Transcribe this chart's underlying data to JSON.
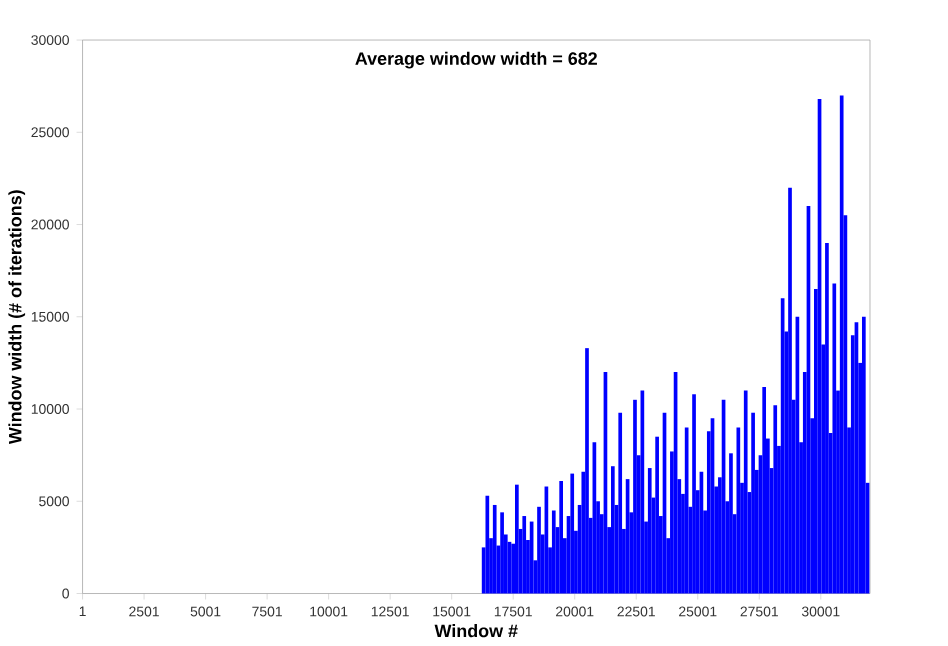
{
  "chart_data": {
    "type": "bar",
    "title": "Average window width = 682",
    "xlabel": "Window #",
    "ylabel": "Window width (# of iterations)",
    "x": [
      16300,
      16450,
      16600,
      16750,
      16900,
      17050,
      17200,
      17350,
      17500,
      17650,
      17800,
      17950,
      18100,
      18250,
      18400,
      18550,
      18700,
      18850,
      19000,
      19150,
      19300,
      19450,
      19600,
      19750,
      19900,
      20050,
      20200,
      20350,
      20500,
      20650,
      20800,
      20950,
      21100,
      21250,
      21400,
      21550,
      21700,
      21850,
      22000,
      22150,
      22300,
      22450,
      22600,
      22750,
      22900,
      23050,
      23200,
      23350,
      23500,
      23650,
      23800,
      23950,
      24100,
      24250,
      24400,
      24550,
      24700,
      24850,
      25000,
      25150,
      25300,
      25450,
      25600,
      25750,
      25900,
      26050,
      26200,
      26350,
      26500,
      26650,
      26800,
      26950,
      27100,
      27250,
      27400,
      27550,
      27700,
      27850,
      28000,
      28150,
      28300,
      28450,
      28600,
      28750,
      28900,
      29050,
      29200,
      29350,
      29500,
      29650,
      29800,
      29950,
      30100,
      30250,
      30400,
      30550,
      30700,
      30850,
      31000,
      31150,
      31300,
      31450,
      31600,
      31750,
      31900
    ],
    "values": [
      2500,
      5300,
      3000,
      4800,
      2600,
      4400,
      3200,
      2800,
      2700,
      5900,
      3500,
      4200,
      2900,
      3900,
      1800,
      4700,
      3200,
      5800,
      2500,
      4500,
      3600,
      6100,
      3000,
      4200,
      6500,
      3400,
      4800,
      6600,
      13300,
      4100,
      8200,
      5000,
      4300,
      12000,
      3600,
      6900,
      4800,
      9800,
      3500,
      6200,
      4400,
      10500,
      7500,
      11000,
      3900,
      6800,
      5200,
      8500,
      4200,
      9800,
      3000,
      7700,
      12000,
      6200,
      5400,
      9000,
      4700,
      10800,
      5600,
      6600,
      4500,
      8800,
      9500,
      5800,
      6300,
      10500,
      5000,
      7600,
      4300,
      9000,
      6000,
      11000,
      5500,
      9800,
      6700,
      7500,
      11200,
      8400,
      6800,
      10200,
      8000,
      16000,
      14200,
      22000,
      10500,
      15000,
      8200,
      12000,
      21000,
      9500,
      16500,
      26800,
      13500,
      19000,
      8700,
      16800,
      11000,
      27000,
      20500,
      9000,
      14000,
      14700,
      12500,
      15000,
      6000
    ],
    "color": "#0000ff",
    "xlim": [
      1,
      32000
    ],
    "xticks": [
      1,
      2501,
      5001,
      7501,
      10001,
      12501,
      15001,
      17501,
      20001,
      22501,
      25001,
      27501,
      30001
    ],
    "ylim": [
      0,
      30000
    ],
    "yticks": [
      0,
      5000,
      10000,
      15000,
      20000,
      25000,
      30000
    ]
  }
}
